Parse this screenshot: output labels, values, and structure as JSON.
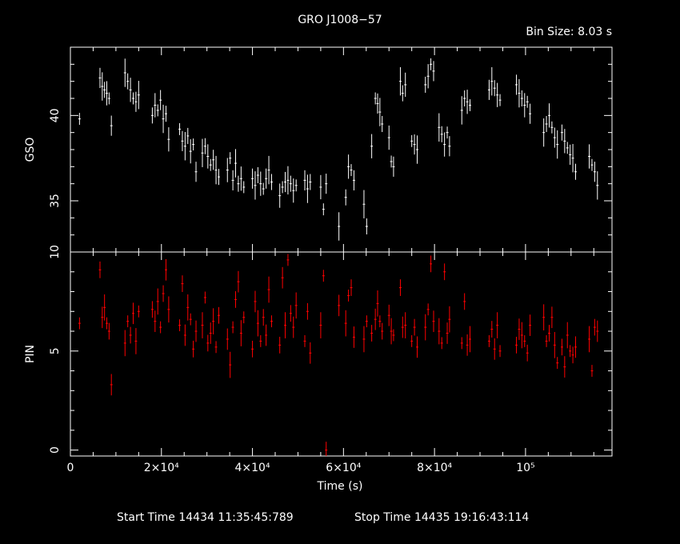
{
  "title": "GRO J1008−57",
  "bin_size_label": "Bin Size:  8.03  s",
  "footer": {
    "start_time": "Start Time 14434  11:35:45:789",
    "stop_time": "Stop Time 14435  19:16:43:114"
  },
  "colors": {
    "background": "#000000",
    "axes": "#ffffff",
    "gso": "#ffffff",
    "pin": "#ff0000"
  },
  "chart_data": [
    {
      "type": "scatter",
      "name": "GSO panel",
      "ylabel": "GSO",
      "xlabel": "",
      "xlim": [
        0,
        119000
      ],
      "ylim": [
        32,
        44
      ],
      "yticks": [
        35,
        40
      ],
      "ytick_labels": [
        "35",
        "40"
      ],
      "xticks": [
        0,
        20000,
        40000,
        60000,
        80000,
        100000
      ],
      "error_bars": true,
      "series": [
        {
          "points": [
            [
              2000,
              39.8
            ],
            [
              6500,
              42.2
            ],
            [
              7000,
              41.7
            ],
            [
              7500,
              41.5
            ],
            [
              8000,
              41.3
            ],
            [
              8500,
              41.0
            ],
            [
              9000,
              39.4
            ],
            [
              12000,
              42.5
            ],
            [
              12600,
              42.0
            ],
            [
              13200,
              41.5
            ],
            [
              13800,
              41.0
            ],
            [
              14400,
              40.8
            ],
            [
              15000,
              41.2
            ],
            [
              18000,
              40.0
            ],
            [
              18600,
              40.6
            ],
            [
              19200,
              40.3
            ],
            [
              19800,
              40.9
            ],
            [
              20400,
              39.8
            ],
            [
              21000,
              40.1
            ],
            [
              21600,
              38.6
            ],
            [
              24000,
              39.2
            ],
            [
              24600,
              38.5
            ],
            [
              25200,
              38.2
            ],
            [
              25800,
              38.8
            ],
            [
              26400,
              37.9
            ],
            [
              27000,
              38.3
            ],
            [
              27600,
              36.7
            ],
            [
              29000,
              37.8
            ],
            [
              29600,
              38.2
            ],
            [
              30200,
              37.6
            ],
            [
              30800,
              37.1
            ],
            [
              31400,
              37.4
            ],
            [
              32000,
              36.8
            ],
            [
              32600,
              36.4
            ],
            [
              34500,
              36.8
            ],
            [
              35100,
              37.5
            ],
            [
              35700,
              36.2
            ],
            [
              36300,
              37.2
            ],
            [
              36900,
              36.0
            ],
            [
              37500,
              36.3
            ],
            [
              38100,
              35.8
            ],
            [
              40000,
              36.3
            ],
            [
              40600,
              35.9
            ],
            [
              41200,
              36.5
            ],
            [
              41800,
              36.0
            ],
            [
              42400,
              35.7
            ],
            [
              43000,
              36.3
            ],
            [
              43600,
              36.8
            ],
            [
              44200,
              36.1
            ],
            [
              46000,
              35.3
            ],
            [
              46600,
              35.8
            ],
            [
              47200,
              36.1
            ],
            [
              47800,
              36.2
            ],
            [
              48400,
              36.0
            ],
            [
              49000,
              35.6
            ],
            [
              49600,
              35.9
            ],
            [
              51500,
              36.2
            ],
            [
              52100,
              35.7
            ],
            [
              52700,
              36.1
            ],
            [
              55000,
              35.8
            ],
            [
              55600,
              34.5
            ],
            [
              56200,
              36.0
            ],
            [
              59000,
              33.5
            ],
            [
              60500,
              35.2
            ],
            [
              61100,
              37.0
            ],
            [
              61700,
              36.8
            ],
            [
              62300,
              36.2
            ],
            [
              64500,
              34.8
            ],
            [
              65100,
              33.5
            ],
            [
              66200,
              38.2
            ],
            [
              67000,
              41.0
            ],
            [
              67500,
              40.7
            ],
            [
              68000,
              40.2
            ],
            [
              68500,
              39.5
            ],
            [
              70000,
              38.7
            ],
            [
              70500,
              37.3
            ],
            [
              71000,
              37.0
            ],
            [
              72500,
              42.0
            ],
            [
              73000,
              41.3
            ],
            [
              73600,
              41.8
            ],
            [
              75000,
              38.5
            ],
            [
              75600,
              38.3
            ],
            [
              76200,
              38.0
            ],
            [
              78000,
              41.8
            ],
            [
              78600,
              42.3
            ],
            [
              79200,
              43.0
            ],
            [
              79800,
              42.6
            ],
            [
              81000,
              39.3
            ],
            [
              81600,
              38.9
            ],
            [
              82200,
              38.3
            ],
            [
              82800,
              39.0
            ],
            [
              83300,
              38.2
            ],
            [
              86000,
              40.3
            ],
            [
              86600,
              41.0
            ],
            [
              87200,
              40.8
            ],
            [
              87800,
              40.6
            ],
            [
              92000,
              41.5
            ],
            [
              92600,
              42.0
            ],
            [
              93200,
              41.6
            ],
            [
              93800,
              41.2
            ],
            [
              94400,
              40.9
            ],
            [
              98000,
              41.8
            ],
            [
              98600,
              41.3
            ],
            [
              99200,
              41.0
            ],
            [
              99800,
              40.6
            ],
            [
              100400,
              40.8
            ],
            [
              101000,
              40.1
            ],
            [
              104000,
              39.0
            ],
            [
              104600,
              39.5
            ],
            [
              105200,
              40.0
            ],
            [
              105800,
              39.3
            ],
            [
              106400,
              38.7
            ],
            [
              107000,
              38.3
            ],
            [
              108000,
              39.0
            ],
            [
              108600,
              38.5
            ],
            [
              109200,
              38.1
            ],
            [
              109800,
              37.7
            ],
            [
              110400,
              37.5
            ],
            [
              111000,
              36.7
            ],
            [
              114000,
              37.6
            ],
            [
              114600,
              37.1
            ],
            [
              115200,
              36.7
            ],
            [
              115800,
              35.9
            ]
          ]
        }
      ]
    },
    {
      "type": "scatter",
      "name": "PIN panel",
      "ylabel": "PIN",
      "xlabel": "Time (s)",
      "xlim": [
        0,
        119000
      ],
      "ylim": [
        -0.3,
        10
      ],
      "yticks": [
        0,
        5,
        10
      ],
      "ytick_labels": [
        "0",
        "5",
        "10"
      ],
      "xticks": [
        0,
        20000,
        40000,
        60000,
        80000,
        100000
      ],
      "xtick_labels": [
        "0",
        "2×10⁴",
        "4×10⁴",
        "6×10⁴",
        "8×10⁴",
        "10⁵"
      ],
      "error_bars": true,
      "series": [
        {
          "points": [
            [
              2000,
              6.4
            ],
            [
              6500,
              9.1
            ],
            [
              7000,
              6.7
            ],
            [
              7500,
              7.2
            ],
            [
              8000,
              6.4
            ],
            [
              8500,
              6.0
            ],
            [
              9000,
              3.3
            ],
            [
              12000,
              5.4
            ],
            [
              12600,
              6.5
            ],
            [
              13200,
              5.8
            ],
            [
              13800,
              6.9
            ],
            [
              14400,
              5.5
            ],
            [
              15000,
              7.0
            ],
            [
              18000,
              7.1
            ],
            [
              18600,
              6.5
            ],
            [
              19200,
              7.5
            ],
            [
              19800,
              6.2
            ],
            [
              20400,
              7.9
            ],
            [
              21000,
              9.1
            ],
            [
              21600,
              7.1
            ],
            [
              24000,
              6.3
            ],
            [
              24600,
              8.4
            ],
            [
              25200,
              5.8
            ],
            [
              25800,
              7.2
            ],
            [
              26400,
              6.6
            ],
            [
              27000,
              5.1
            ],
            [
              27600,
              6.0
            ],
            [
              29000,
              6.3
            ],
            [
              29600,
              7.7
            ],
            [
              30200,
              5.4
            ],
            [
              30800,
              5.9
            ],
            [
              31400,
              6.5
            ],
            [
              32000,
              5.2
            ],
            [
              32600,
              6.8
            ],
            [
              34500,
              5.6
            ],
            [
              35100,
              4.3
            ],
            [
              35700,
              6.2
            ],
            [
              36300,
              7.6
            ],
            [
              36900,
              8.5
            ],
            [
              37500,
              5.9
            ],
            [
              38100,
              6.7
            ],
            [
              40000,
              5.1
            ],
            [
              40600,
              7.5
            ],
            [
              41200,
              6.4
            ],
            [
              41800,
              5.5
            ],
            [
              42400,
              6.7
            ],
            [
              43000,
              5.8
            ],
            [
              43600,
              8.1
            ],
            [
              44200,
              6.5
            ],
            [
              46000,
              5.3
            ],
            [
              46600,
              8.7
            ],
            [
              47200,
              6.3
            ],
            [
              47800,
              9.6
            ],
            [
              48400,
              6.9
            ],
            [
              49000,
              6.2
            ],
            [
              49600,
              7.3
            ],
            [
              51500,
              5.5
            ],
            [
              52100,
              7.0
            ],
            [
              52700,
              4.9
            ],
            [
              55000,
              6.3
            ],
            [
              55600,
              8.8
            ],
            [
              56200,
              0.0
            ],
            [
              59000,
              7.3
            ],
            [
              60500,
              6.4
            ],
            [
              61100,
              7.8
            ],
            [
              61700,
              8.2
            ],
            [
              62300,
              5.7
            ],
            [
              64500,
              5.6
            ],
            [
              65100,
              6.5
            ],
            [
              66200,
              5.9
            ],
            [
              67000,
              6.6
            ],
            [
              67500,
              7.4
            ],
            [
              68000,
              6.5
            ],
            [
              68500,
              6.0
            ],
            [
              70000,
              6.8
            ],
            [
              70500,
              6.0
            ],
            [
              71000,
              5.8
            ],
            [
              72500,
              8.2
            ],
            [
              73000,
              6.2
            ],
            [
              73600,
              6.3
            ],
            [
              75000,
              5.5
            ],
            [
              75600,
              6.2
            ],
            [
              76200,
              5.2
            ],
            [
              78000,
              6.2
            ],
            [
              78600,
              7.1
            ],
            [
              79200,
              9.4
            ],
            [
              79800,
              6.5
            ],
            [
              81000,
              6.0
            ],
            [
              81600,
              5.4
            ],
            [
              82200,
              9.0
            ],
            [
              82800,
              5.9
            ],
            [
              83300,
              6.6
            ],
            [
              86000,
              5.4
            ],
            [
              86600,
              7.5
            ],
            [
              87200,
              5.3
            ],
            [
              87800,
              5.6
            ],
            [
              92000,
              5.5
            ],
            [
              92600,
              6.1
            ],
            [
              93200,
              5.1
            ],
            [
              93800,
              6.3
            ],
            [
              94400,
              5.0
            ],
            [
              98000,
              5.3
            ],
            [
              98600,
              6.1
            ],
            [
              99200,
              5.8
            ],
            [
              99800,
              5.5
            ],
            [
              100400,
              4.9
            ],
            [
              101000,
              6.3
            ],
            [
              104000,
              6.7
            ],
            [
              104600,
              5.5
            ],
            [
              105200,
              5.9
            ],
            [
              105800,
              6.7
            ],
            [
              106400,
              5.3
            ],
            [
              107000,
              4.4
            ],
            [
              108000,
              5.2
            ],
            [
              108600,
              4.2
            ],
            [
              109200,
              5.8
            ],
            [
              109800,
              5.0
            ],
            [
              110400,
              4.8
            ],
            [
              111000,
              5.2
            ],
            [
              114000,
              5.6
            ],
            [
              114600,
              4.0
            ],
            [
              115200,
              6.2
            ],
            [
              115800,
              6.0
            ]
          ]
        }
      ]
    }
  ]
}
